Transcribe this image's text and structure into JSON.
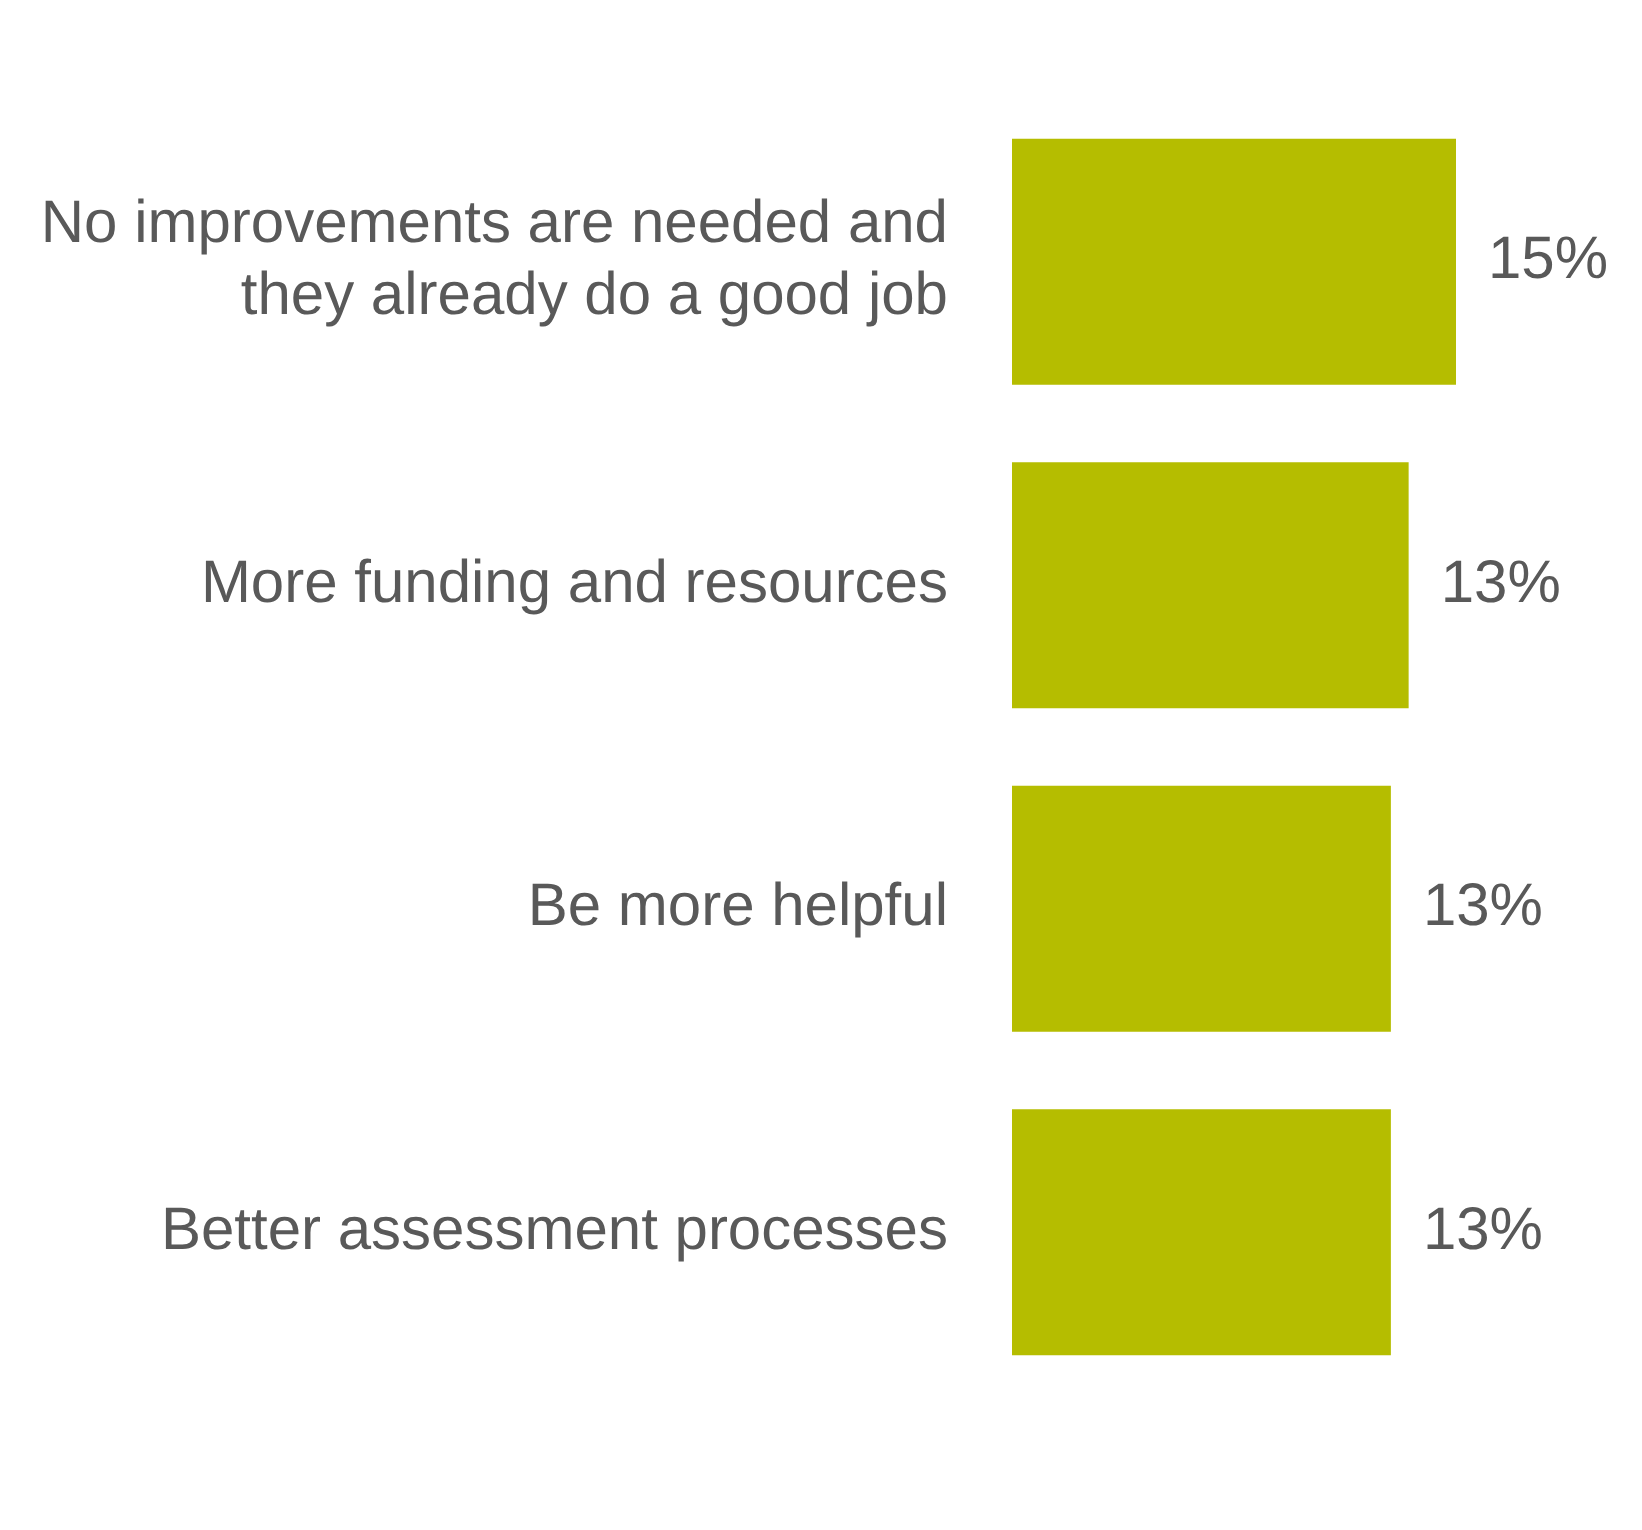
{
  "chart_data": {
    "type": "bar",
    "orientation": "horizontal",
    "categories": [
      "No improvements are needed and they already do a good job",
      "More funding and resources",
      "Be more helpful",
      "Better assessment processes"
    ],
    "values": [
      15,
      13.4,
      12.8,
      12.8
    ],
    "value_labels": [
      "15%",
      "13%",
      "13%",
      "13%"
    ],
    "color": "#b5bd00"
  }
}
